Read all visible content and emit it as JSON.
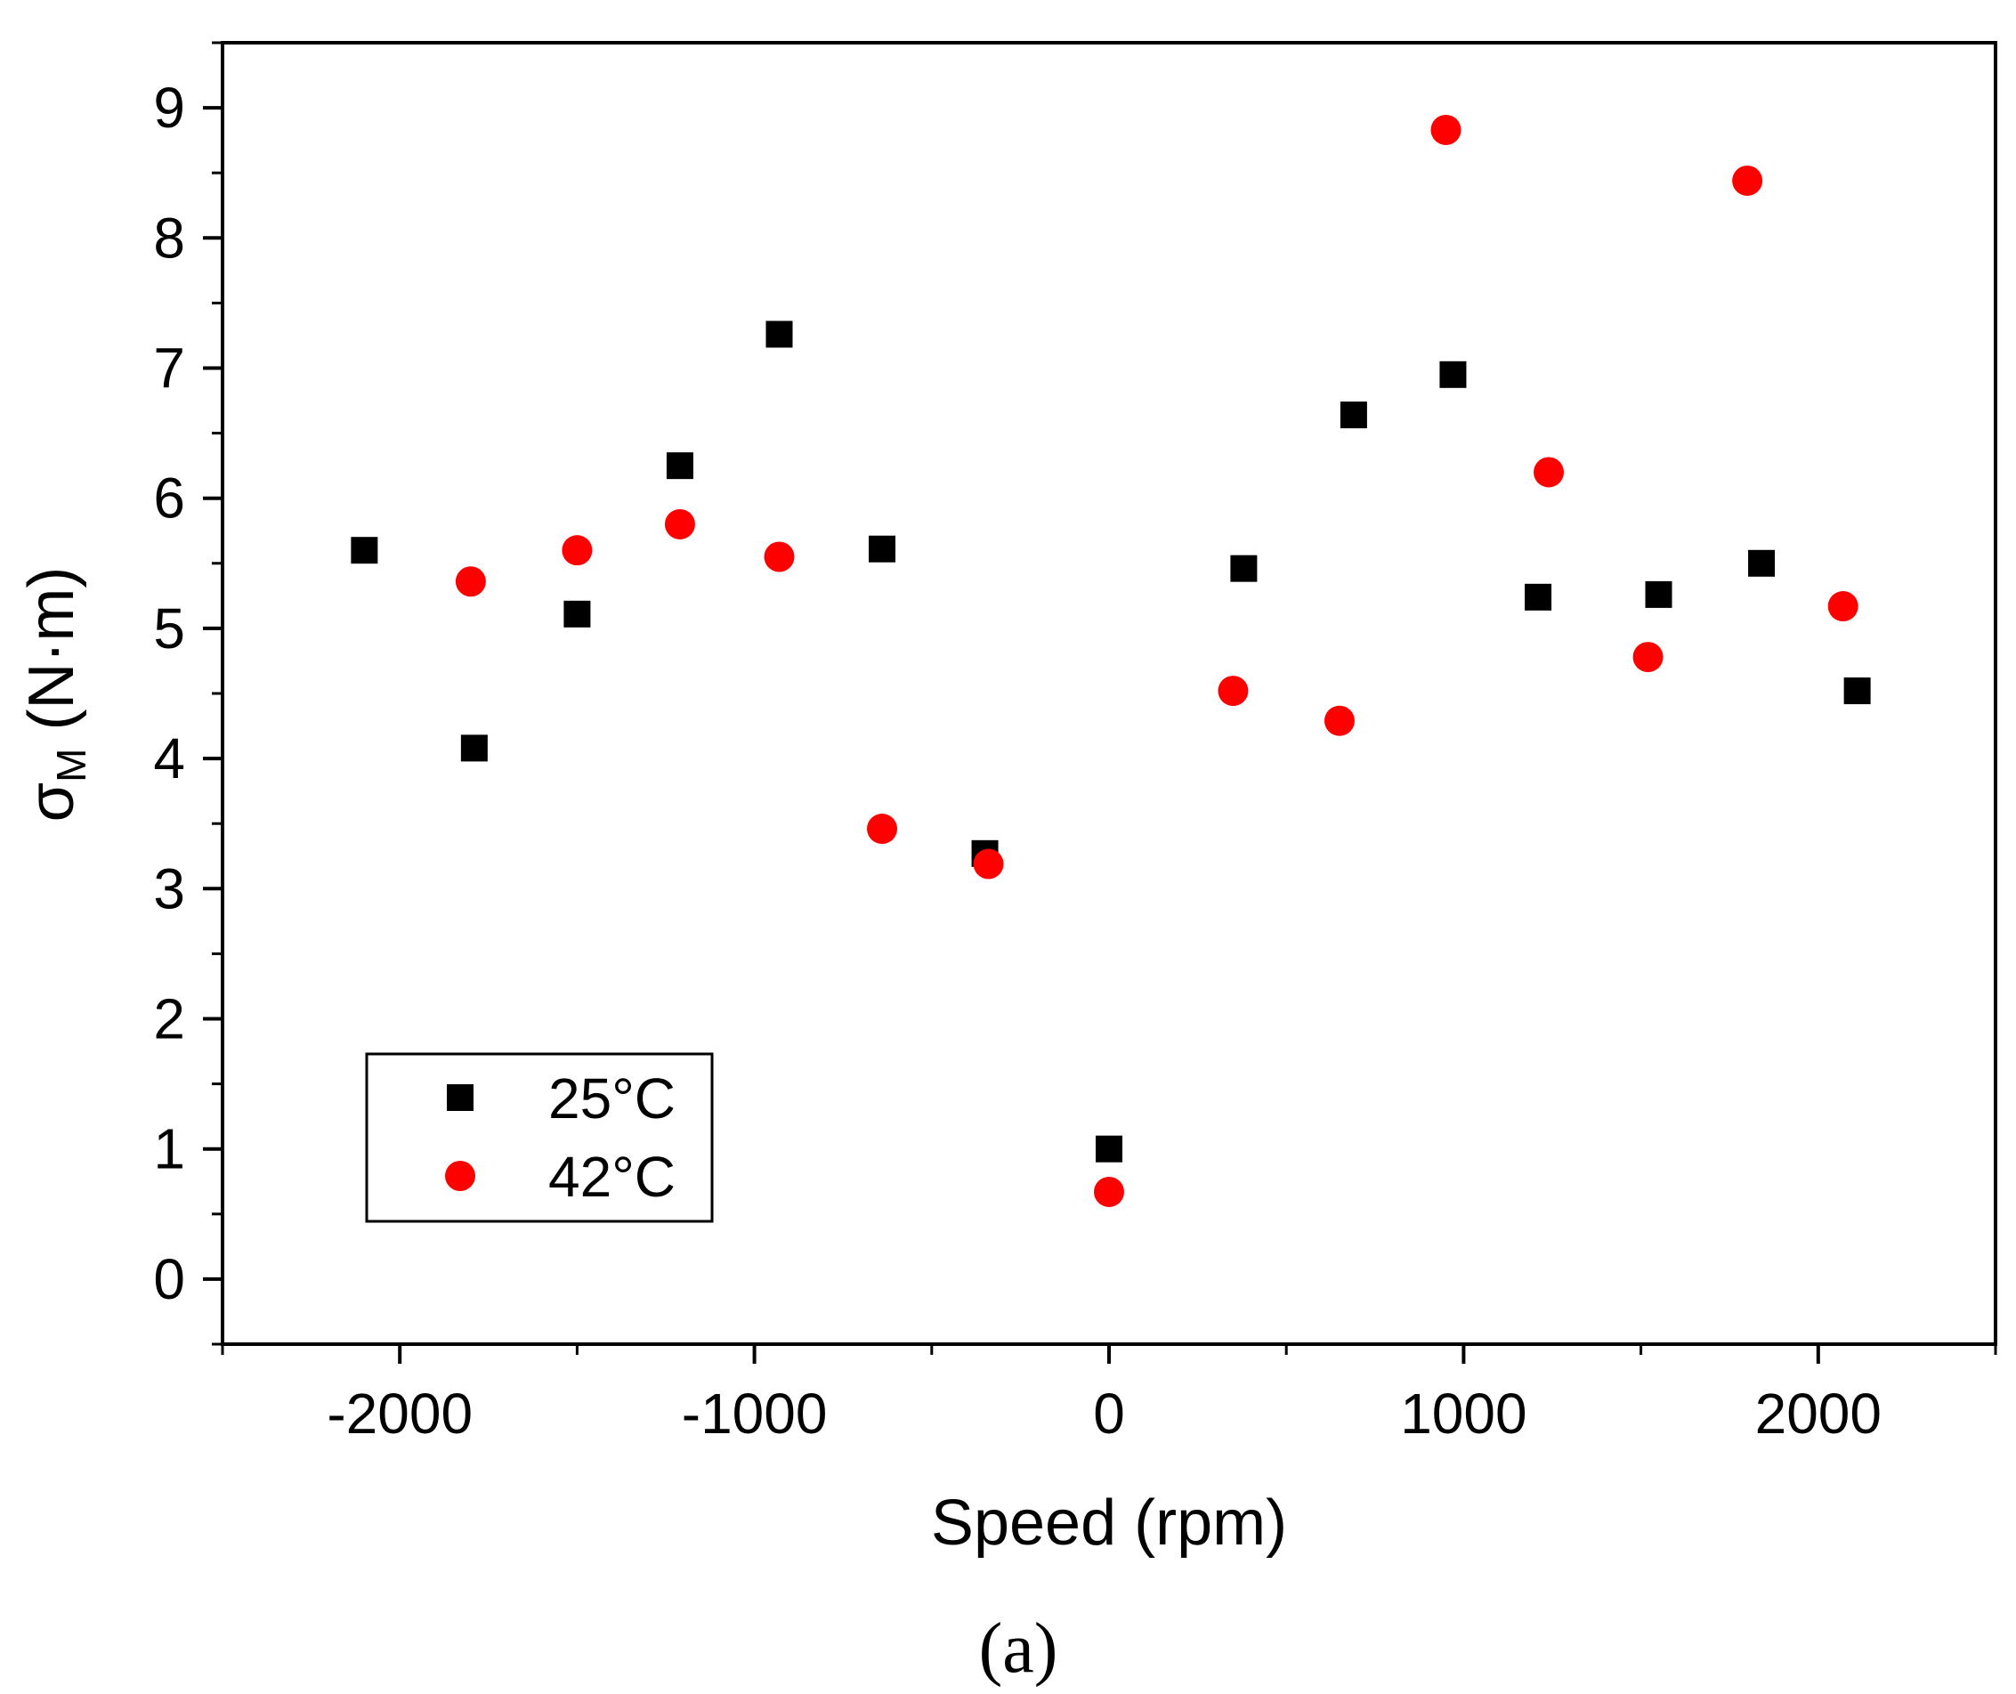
{
  "chart_data": {
    "type": "scatter",
    "xlabel": "Speed (rpm)",
    "ylabel_main": "σ",
    "ylabel_sub": "M",
    "ylabel_unit": " (N·m)",
    "xlim": [
      -2500,
      2500
    ],
    "ylim": [
      -0.5,
      9.5
    ],
    "xticks": [
      -2000,
      -1000,
      0,
      1000,
      2000
    ],
    "yticks": [
      0,
      1,
      2,
      3,
      4,
      5,
      6,
      7,
      8,
      9
    ],
    "grid": false,
    "legend": "bottom-left",
    "caption": "(a)",
    "series": [
      {
        "name": "25°C",
        "marker": "square",
        "color": "#000000",
        "x": [
          -2100,
          -1790,
          -1500,
          -1210,
          -930,
          -640,
          -350,
          0,
          380,
          690,
          970,
          1210,
          1550,
          1840,
          2110
        ],
        "y": [
          5.6,
          4.08,
          5.11,
          6.25,
          7.26,
          5.61,
          3.27,
          1.0,
          5.46,
          6.64,
          6.95,
          5.24,
          5.26,
          5.5,
          4.52
        ]
      },
      {
        "name": "42°C",
        "marker": "circle",
        "color": "#ff0000",
        "x": [
          -1800,
          -1500,
          -1210,
          -930,
          -640,
          -340,
          0,
          350,
          650,
          950,
          1240,
          1520,
          1800,
          2070
        ],
        "y": [
          5.36,
          5.6,
          5.8,
          5.55,
          3.46,
          3.19,
          0.67,
          4.52,
          4.29,
          8.83,
          6.2,
          4.78,
          8.44,
          5.17
        ]
      }
    ]
  }
}
